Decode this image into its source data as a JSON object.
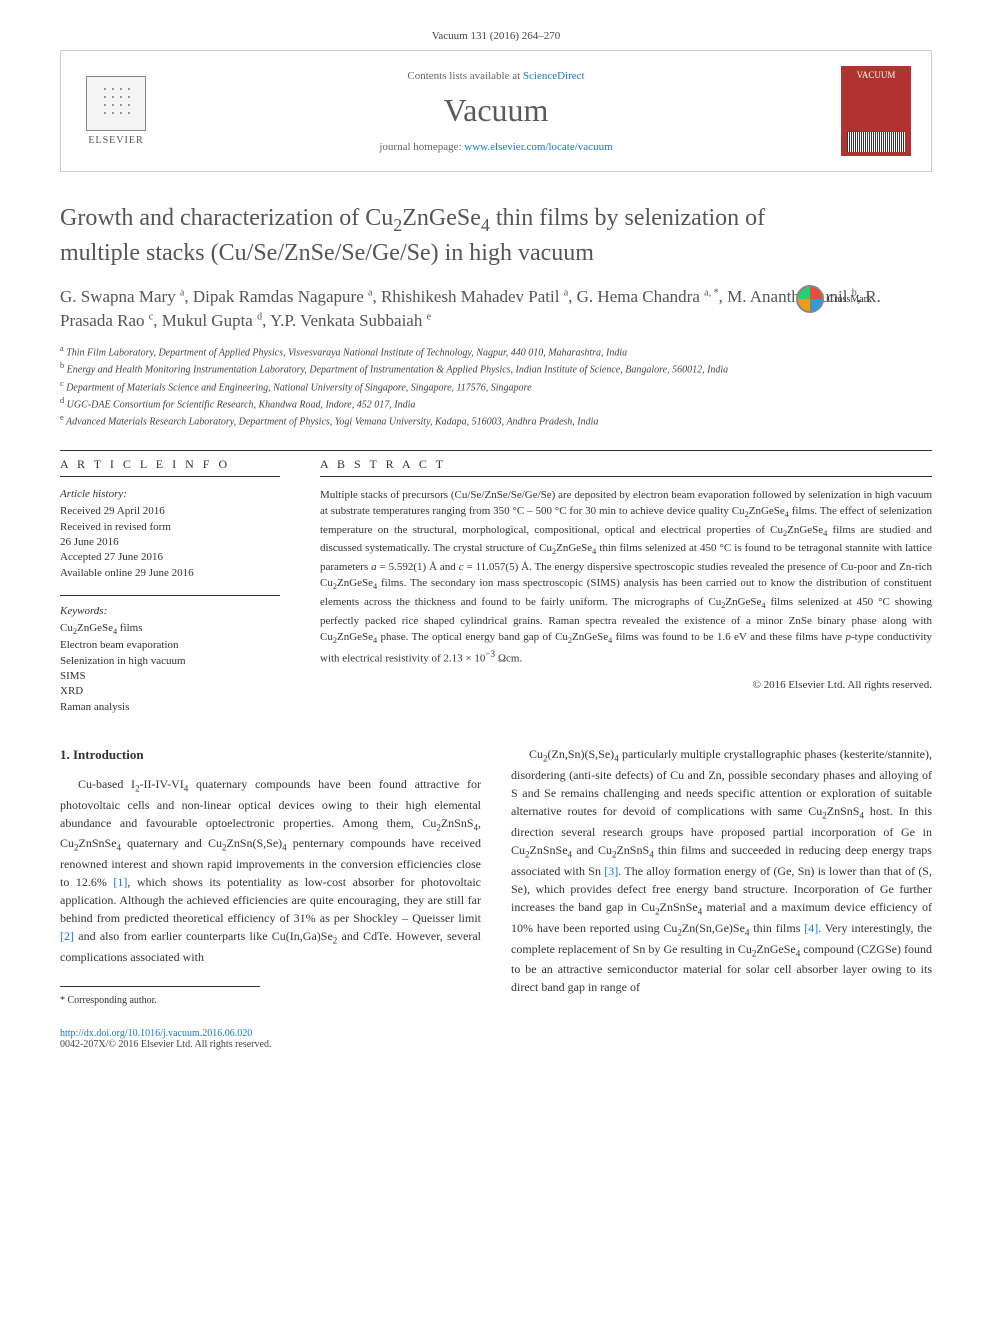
{
  "page_header": "Vacuum 131 (2016) 264–270",
  "contents_line_prefix": "Contents lists available at ",
  "contents_link": "ScienceDirect",
  "journal_name": "Vacuum",
  "homepage_prefix": "journal homepage: ",
  "homepage_url": "www.elsevier.com/locate/vacuum",
  "elsevier": "ELSEVIER",
  "cover_label": "VACUUM",
  "crossmark": "CrossMark",
  "title_html": "Growth and characterization of Cu<sub>2</sub>ZnGeSe<sub>4</sub> thin films by selenization of multiple stacks (Cu/Se/ZnSe/Se/Ge/Se) in high vacuum",
  "authors_html": "G. Swapna Mary <sup>a</sup>, Dipak Ramdas Nagapure <sup>a</sup>, Rhishikesh Mahadev Patil <sup>a</sup>, G. Hema Chandra <sup>a, *</sup>, M. Anantha Sunil <sup>b</sup>, R. Prasada Rao <sup>c</sup>, Mukul Gupta <sup>d</sup>, Y.P. Venkata Subbaiah <sup>e</sup>",
  "affiliations": [
    "<sup>a</sup> Thin Film Laboratory, Department of Applied Physics, Visvesvaraya National Institute of Technology, Nagpur, 440 010, Maharashtra, India",
    "<sup>b</sup> Energy and Health Monitoring Instrumentation Laboratory, Department of Instrumentation & Applied Physics, Indian Institute of Science, Bangalore, 560012, India",
    "<sup>c</sup> Department of Materials Science and Engineering, National University of Singapore, Singapore, 117576, Singapore",
    "<sup>d</sup> UGC-DAE Consortium for Scientific Research, Khandwa Road, Indore, 452 017, India",
    "<sup>e</sup> Advanced Materials Research Laboratory, Department of Physics, Yogi Vemana University, Kadapa, 516003, Andhra Pradesh, India"
  ],
  "article_info_heading": "A R T I C L E   I N F O",
  "history_label": "Article history:",
  "history_lines": [
    "Received 29 April 2016",
    "Received in revised form",
    "26 June 2016",
    "Accepted 27 June 2016",
    "Available online 29 June 2016"
  ],
  "keywords_label": "Keywords:",
  "keywords": [
    "Cu<sub>2</sub>ZnGeSe<sub>4</sub> films",
    "Electron beam evaporation",
    "Selenization in high vacuum",
    "SIMS",
    "XRD",
    "Raman analysis"
  ],
  "abstract_heading": "A B S T R A C T",
  "abstract_html": "Multiple stacks of precursors (Cu/Se/ZnSe/Se/Ge/Se) are deposited by electron beam evaporation followed by selenization in high vacuum at substrate temperatures ranging from 350 °C – 500 °C for 30 min to achieve device quality Cu<sub>2</sub>ZnGeSe<sub>4</sub> films. The effect of selenization temperature on the structural, morphological, compositional, optical and electrical properties of Cu<sub>2</sub>ZnGeSe<sub>4</sub> films are studied and discussed systematically. The crystal structure of Cu<sub>2</sub>ZnGeSe<sub>4</sub> thin films selenized at 450 °C is found to be tetragonal stannite with lattice parameters <i>a</i> = 5.592(1) Å and <i>c</i> = 11.057(5) Å. The energy dispersive spectroscopic studies revealed the presence of Cu-poor and Zn-rich Cu<sub>2</sub>ZnGeSe<sub>4</sub> films. The secondary ion mass spectroscopic (SIMS) analysis has been carried out to know the distribution of constituent elements across the thickness and found to be fairly uniform. The micrographs of Cu<sub>2</sub>ZnGeSe<sub>4</sub> films selenized at 450 °C showing perfectly packed rice shaped cylindrical grains. Raman spectra revealed the existence of a minor ZnSe binary phase along with Cu<sub>2</sub>ZnGeSe<sub>4</sub> phase. The optical energy band gap of Cu<sub>2</sub>ZnGeSe<sub>4</sub> films was found to be 1.6 eV and these films have <i>p</i>-type conductivity with electrical resistivity of 2.13 × 10<sup>−3</sup> Ωcm.",
  "abstract_copyright": "© 2016 Elsevier Ltd. All rights reserved.",
  "intro_heading": "1. Introduction",
  "intro_col1_html": "Cu-based I<sub>2</sub>-II-IV-VI<sub>4</sub> quaternary compounds have been found attractive for photovoltaic cells and non-linear optical devices owing to their high elemental abundance and favourable optoelectronic properties. Among them, Cu<sub>2</sub>ZnSnS<sub>4</sub>, Cu<sub>2</sub>ZnSnSe<sub>4</sub> quaternary and Cu<sub>2</sub>ZnSn(S,Se)<sub>4</sub> penternary compounds have received renowned interest and shown rapid improvements in the conversion efficiencies close to 12.6% <a class='ref'>[1]</a>, which shows its potentiality as low-cost absorber for photovoltaic application. Although the achieved efficiencies are quite encouraging, they are still far behind from predicted theoretical efficiency of 31% as per Shockley – Queisser limit <a class='ref'>[2]</a> and also from earlier counterparts like Cu(In,Ga)Se<sub>2</sub> and CdTe. However, several complications associated with",
  "intro_col2_html": "Cu<sub>2</sub>(Zn,Sn)(S,Se)<sub>4</sub> particularly multiple crystallographic phases (kesterite/stannite), disordering (anti-site defects) of Cu and Zn, possible secondary phases and alloying of S and Se remains challenging and needs specific attention or exploration of suitable alternative routes for devoid of complications with same Cu<sub>2</sub>ZnSnS<sub>4</sub> host. In this direction several research groups have proposed partial incorporation of Ge in Cu<sub>2</sub>ZnSnSe<sub>4</sub> and Cu<sub>2</sub>ZnSnS<sub>4</sub> thin films and succeeded in reducing deep energy traps associated with Sn <a class='ref'>[3]</a>. The alloy formation energy of (Ge, Sn) is lower than that of (S, Se), which provides defect free energy band structure. Incorporation of Ge further increases the band gap in Cu<sub>2</sub>ZnSnSe<sub>4</sub> material and a maximum device efficiency of 10% have been reported using Cu<sub>2</sub>Zn(Sn,Ge)Se<sub>4</sub> thin films <a class='ref'>[4]</a>. Very interestingly, the complete replacement of Sn by Ge resulting in Cu<sub>2</sub>ZnGeSe<sub>4</sub> compound (CZGSe) found to be an attractive semiconductor material for solar cell absorber layer owing to its direct band gap in range of",
  "corresponding_note": "* Corresponding author.",
  "doi_url": "http://dx.doi.org/10.1016/j.vacuum.2016.06.020",
  "issn_line": "0042-207X/© 2016 Elsevier Ltd. All rights reserved."
}
